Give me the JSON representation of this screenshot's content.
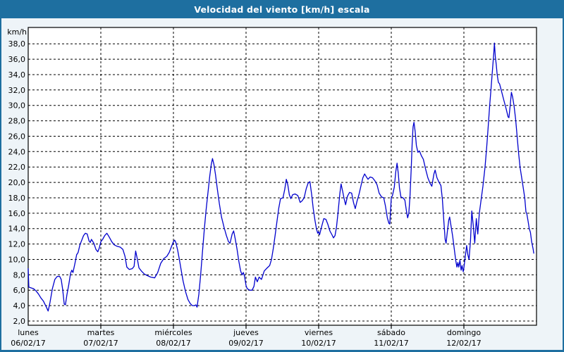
{
  "window": {
    "title": "Velocidad del viento [km/h] escala"
  },
  "colors": {
    "titlebar": "#1e6fa0",
    "frame_border": "#1e6fa0",
    "background": "#eef4f8",
    "plot_background": "#ffffff",
    "grid": "#000000",
    "axis": "#000000",
    "text": "#000000",
    "title_text": "#ffffff",
    "line": "#0000cd"
  },
  "chart_data": {
    "type": "line",
    "title": "Velocidad del viento [km/h] escala",
    "ylabel": "km/h",
    "grid": "dashed",
    "legend_position": "none",
    "y_axis": {
      "unit_label": "km/h",
      "min": 2,
      "max": 38,
      "tick_step": 2,
      "tick_values": [
        38,
        36,
        34,
        32,
        30,
        28,
        26,
        24,
        22,
        20,
        18,
        16,
        14,
        12,
        10,
        8,
        6,
        4,
        2
      ],
      "tick_labels": [
        "38,0",
        "36,0",
        "34,0",
        "32,0",
        "30,0",
        "28,0",
        "26,0",
        "24,0",
        "22,0",
        "20,0",
        "18,0",
        "16,0",
        "14,0",
        "12,0",
        "10,0",
        "8,0",
        "6,0",
        "4,0",
        "2,0"
      ]
    },
    "x_axis": {
      "unit": "hours_from_monday_00h",
      "hours_per_day": 24,
      "hours_total": 168,
      "days": [
        {
          "name": "lunes",
          "date": "06/02/17"
        },
        {
          "name": "martes",
          "date": "07/02/17"
        },
        {
          "name": "miércoles",
          "date": "08/02/17"
        },
        {
          "name": "jueves",
          "date": "09/02/17"
        },
        {
          "name": "viernes",
          "date": "10/02/17"
        },
        {
          "name": "sábado",
          "date": "11/02/17"
        },
        {
          "name": "domingo",
          "date": "12/02/17"
        }
      ]
    },
    "series": [
      {
        "name": "velocidad-del-viento-kmh",
        "color": "#0000cd",
        "points": [
          [
            0,
            8.8
          ],
          [
            0.2,
            6.4
          ],
          [
            1,
            6.3
          ],
          [
            1.8,
            6.2
          ],
          [
            2.6,
            5.9
          ],
          [
            3.4,
            5.5
          ],
          [
            4.2,
            5.0
          ],
          [
            5,
            4.6
          ],
          [
            6,
            3.8
          ],
          [
            6.6,
            3.3
          ],
          [
            7.2,
            4.4
          ],
          [
            8,
            6.2
          ],
          [
            8.8,
            7.4
          ],
          [
            9.6,
            7.8
          ],
          [
            10.4,
            7.8
          ],
          [
            10.9,
            7.4
          ],
          [
            11.4,
            6.1
          ],
          [
            11.9,
            4.2
          ],
          [
            12.3,
            4.1
          ],
          [
            12.8,
            5.4
          ],
          [
            13.4,
            6.7
          ],
          [
            14,
            8.2
          ],
          [
            14.4,
            8.6
          ],
          [
            14.8,
            8.3
          ],
          [
            15.4,
            9.4
          ],
          [
            16,
            10.6
          ],
          [
            16.5,
            10.9
          ],
          [
            17.1,
            11.9
          ],
          [
            17.7,
            12.5
          ],
          [
            18.3,
            13.1
          ],
          [
            18.9,
            13.4
          ],
          [
            19.5,
            13.3
          ],
          [
            20.1,
            12.4
          ],
          [
            20.5,
            12.2
          ],
          [
            20.9,
            12.6
          ],
          [
            21.7,
            12.1
          ],
          [
            22.4,
            11.3
          ],
          [
            23,
            11.0
          ],
          [
            23.5,
            11.5
          ],
          [
            24,
            12.3
          ],
          [
            24.6,
            12.6
          ],
          [
            25.3,
            13.1
          ],
          [
            26,
            13.4
          ],
          [
            26.8,
            12.9
          ],
          [
            27.6,
            12.3
          ],
          [
            28.4,
            11.9
          ],
          [
            29.4,
            11.7
          ],
          [
            30.4,
            11.6
          ],
          [
            31.3,
            11.3
          ],
          [
            32,
            10.4
          ],
          [
            32.6,
            9.0
          ],
          [
            33.4,
            8.7
          ],
          [
            34.4,
            8.8
          ],
          [
            35,
            9.1
          ],
          [
            35.5,
            11.1
          ],
          [
            36.1,
            10.0
          ],
          [
            36.6,
            8.9
          ],
          [
            37.4,
            8.5
          ],
          [
            38.4,
            8.1
          ],
          [
            39.4,
            7.9
          ],
          [
            40.5,
            7.7
          ],
          [
            41.8,
            7.6
          ],
          [
            42.8,
            8.3
          ],
          [
            43.8,
            9.5
          ],
          [
            44.8,
            10.1
          ],
          [
            45.8,
            10.4
          ],
          [
            46.6,
            10.9
          ],
          [
            47.4,
            11.7
          ],
          [
            48,
            12.3
          ],
          [
            48.4,
            12.5
          ],
          [
            48.8,
            12.2
          ],
          [
            49.4,
            11.2
          ],
          [
            50,
            9.9
          ],
          [
            50.6,
            8.5
          ],
          [
            51.2,
            7.2
          ],
          [
            52,
            5.8
          ],
          [
            52.8,
            4.8
          ],
          [
            53.5,
            4.3
          ],
          [
            54.2,
            4.0
          ],
          [
            55,
            4.0
          ],
          [
            55.4,
            4.1
          ],
          [
            55.8,
            3.8
          ],
          [
            56.4,
            5.5
          ],
          [
            57,
            8.0
          ],
          [
            57.6,
            11.0
          ],
          [
            58.2,
            13.9
          ],
          [
            58.8,
            16.4
          ],
          [
            59.4,
            18.6
          ],
          [
            60,
            20.8
          ],
          [
            60.5,
            22.3
          ],
          [
            60.9,
            23.1
          ],
          [
            61.4,
            22.3
          ],
          [
            61.9,
            21.0
          ],
          [
            62.5,
            19.2
          ],
          [
            63.2,
            17.2
          ],
          [
            63.9,
            15.5
          ],
          [
            64.7,
            14.2
          ],
          [
            65.5,
            13.1
          ],
          [
            66.2,
            12.3
          ],
          [
            66.7,
            12.1
          ],
          [
            67.4,
            13.3
          ],
          [
            67.9,
            13.7
          ],
          [
            68.4,
            12.7
          ],
          [
            69,
            11.4
          ],
          [
            69.6,
            9.8
          ],
          [
            70.2,
            8.5
          ],
          [
            70.7,
            8.0
          ],
          [
            71.1,
            8.3
          ],
          [
            71.5,
            7.8
          ],
          [
            72,
            6.6
          ],
          [
            72.4,
            6.2
          ],
          [
            73.2,
            6.0
          ],
          [
            74,
            6.0
          ],
          [
            74.6,
            6.5
          ],
          [
            75.1,
            7.7
          ],
          [
            75.7,
            7.1
          ],
          [
            76.3,
            7.7
          ],
          [
            77.1,
            7.4
          ],
          [
            78,
            8.5
          ],
          [
            79,
            8.9
          ],
          [
            79.8,
            9.2
          ],
          [
            80.4,
            10.0
          ],
          [
            81,
            11.4
          ],
          [
            81.6,
            13.1
          ],
          [
            82.2,
            14.9
          ],
          [
            82.8,
            16.6
          ],
          [
            83.4,
            17.9
          ],
          [
            84.2,
            18.0
          ],
          [
            84.8,
            19.1
          ],
          [
            85.3,
            20.4
          ],
          [
            85.8,
            19.7
          ],
          [
            86.3,
            18.4
          ],
          [
            86.8,
            17.9
          ],
          [
            87.4,
            18.4
          ],
          [
            88.2,
            18.5
          ],
          [
            89.1,
            18.3
          ],
          [
            89.9,
            17.4
          ],
          [
            90.5,
            17.6
          ],
          [
            91.2,
            18.0
          ],
          [
            91.9,
            19.2
          ],
          [
            92.5,
            19.9
          ],
          [
            93.1,
            20.1
          ],
          [
            93.7,
            18.4
          ],
          [
            94.2,
            16.6
          ],
          [
            94.8,
            15.0
          ],
          [
            95.3,
            13.9
          ],
          [
            95.7,
            13.4
          ],
          [
            96,
            13.6
          ],
          [
            96.3,
            13.2
          ],
          [
            97,
            14.3
          ],
          [
            97.7,
            15.3
          ],
          [
            98.4,
            15.2
          ],
          [
            99,
            14.6
          ],
          [
            99.7,
            13.7
          ],
          [
            100.4,
            13.2
          ],
          [
            100.9,
            12.8
          ],
          [
            101.4,
            13.1
          ],
          [
            101.9,
            14.2
          ],
          [
            102.4,
            16.1
          ],
          [
            103,
            18.5
          ],
          [
            103.4,
            19.8
          ],
          [
            103.9,
            18.9
          ],
          [
            104.4,
            17.9
          ],
          [
            104.9,
            17.1
          ],
          [
            105.5,
            18.2
          ],
          [
            106.2,
            18.7
          ],
          [
            106.9,
            18.6
          ],
          [
            107.5,
            17.4
          ],
          [
            108.1,
            16.6
          ],
          [
            108.7,
            17.6
          ],
          [
            109.3,
            18.4
          ],
          [
            110,
            19.6
          ],
          [
            110.6,
            20.6
          ],
          [
            111.2,
            21.1
          ],
          [
            111.8,
            20.7
          ],
          [
            112.3,
            20.4
          ],
          [
            113,
            20.7
          ],
          [
            113.8,
            20.6
          ],
          [
            114.6,
            20.2
          ],
          [
            115.3,
            19.7
          ],
          [
            116,
            18.6
          ],
          [
            116.8,
            18.1
          ],
          [
            117.5,
            18.0
          ],
          [
            118.1,
            16.9
          ],
          [
            118.7,
            15.4
          ],
          [
            119.2,
            14.7
          ],
          [
            119.5,
            14.6
          ],
          [
            119.8,
            16.5
          ],
          [
            120,
            18.0
          ],
          [
            120.4,
            18.3
          ],
          [
            121,
            19.4
          ],
          [
            121.5,
            21.4
          ],
          [
            121.9,
            22.5
          ],
          [
            122.3,
            21.2
          ],
          [
            122.7,
            19.3
          ],
          [
            123.2,
            18.1
          ],
          [
            123.9,
            18.0
          ],
          [
            124.5,
            17.7
          ],
          [
            125,
            16.3
          ],
          [
            125.4,
            15.4
          ],
          [
            125.8,
            16.0
          ],
          [
            126.2,
            18.3
          ],
          [
            126.6,
            21.8
          ],
          [
            126.9,
            25.0
          ],
          [
            127.2,
            27.2
          ],
          [
            127.5,
            27.8
          ],
          [
            127.9,
            26.6
          ],
          [
            128.3,
            24.8
          ],
          [
            128.8,
            23.9
          ],
          [
            129.3,
            24.1
          ],
          [
            129.9,
            23.5
          ],
          [
            130.6,
            23.0
          ],
          [
            131.3,
            21.8
          ],
          [
            132.1,
            20.6
          ],
          [
            132.8,
            19.9
          ],
          [
            133.4,
            19.5
          ],
          [
            134.1,
            21.1
          ],
          [
            134.5,
            21.6
          ],
          [
            135.1,
            20.6
          ],
          [
            135.8,
            20.0
          ],
          [
            136.4,
            19.6
          ],
          [
            136.9,
            17.8
          ],
          [
            137.4,
            14.8
          ],
          [
            137.8,
            12.6
          ],
          [
            138.1,
            12.1
          ],
          [
            138.5,
            13.5
          ],
          [
            139,
            15.1
          ],
          [
            139.3,
            15.5
          ],
          [
            139.8,
            14.2
          ],
          [
            140.3,
            13.0
          ],
          [
            140.8,
            11.4
          ],
          [
            141.3,
            9.9
          ],
          [
            141.7,
            9.0
          ],
          [
            142,
            9.6
          ],
          [
            142.3,
            9.0
          ],
          [
            142.7,
            9.9
          ],
          [
            143.1,
            8.6
          ],
          [
            143.4,
            9.2
          ],
          [
            143.8,
            8.4
          ],
          [
            144,
            8.9
          ],
          [
            144.4,
            10.2
          ],
          [
            144.9,
            11.8
          ],
          [
            145.3,
            10.6
          ],
          [
            145.7,
            10.0
          ],
          [
            146.2,
            12.5
          ],
          [
            146.6,
            16.3
          ],
          [
            147.1,
            14.4
          ],
          [
            147.6,
            12.1
          ],
          [
            148.1,
            15.3
          ],
          [
            148.6,
            13.3
          ],
          [
            149.1,
            16.0
          ],
          [
            149.7,
            17.8
          ],
          [
            150.3,
            19.5
          ],
          [
            151,
            22.0
          ],
          [
            151.5,
            24.4
          ],
          [
            152,
            27.0
          ],
          [
            152.5,
            29.9
          ],
          [
            153,
            32.3
          ],
          [
            153.5,
            34.9
          ],
          [
            153.9,
            36.9
          ],
          [
            154.1,
            38.1
          ],
          [
            154.4,
            36.3
          ],
          [
            154.7,
            35.3
          ],
          [
            155,
            34.0
          ],
          [
            155.4,
            33.0
          ],
          [
            155.8,
            32.8
          ],
          [
            156.4,
            31.9
          ],
          [
            157.2,
            30.7
          ],
          [
            158,
            29.5
          ],
          [
            158.6,
            28.5
          ],
          [
            158.9,
            28.4
          ],
          [
            159.3,
            30.0
          ],
          [
            159.7,
            31.7
          ],
          [
            160.1,
            31.1
          ],
          [
            160.6,
            29.9
          ],
          [
            161.1,
            28.2
          ],
          [
            161.6,
            26.0
          ],
          [
            162.1,
            23.7
          ],
          [
            162.6,
            21.9
          ],
          [
            163.1,
            20.6
          ],
          [
            163.7,
            19.1
          ],
          [
            164.1,
            18.0
          ],
          [
            164.5,
            16.2
          ],
          [
            164.8,
            15.9
          ],
          [
            165.2,
            15.0
          ],
          [
            165.6,
            14.0
          ],
          [
            166,
            13.5
          ],
          [
            166.4,
            12.3
          ],
          [
            166.9,
            11.3
          ],
          [
            167.1,
            10.8
          ]
        ]
      }
    ]
  }
}
